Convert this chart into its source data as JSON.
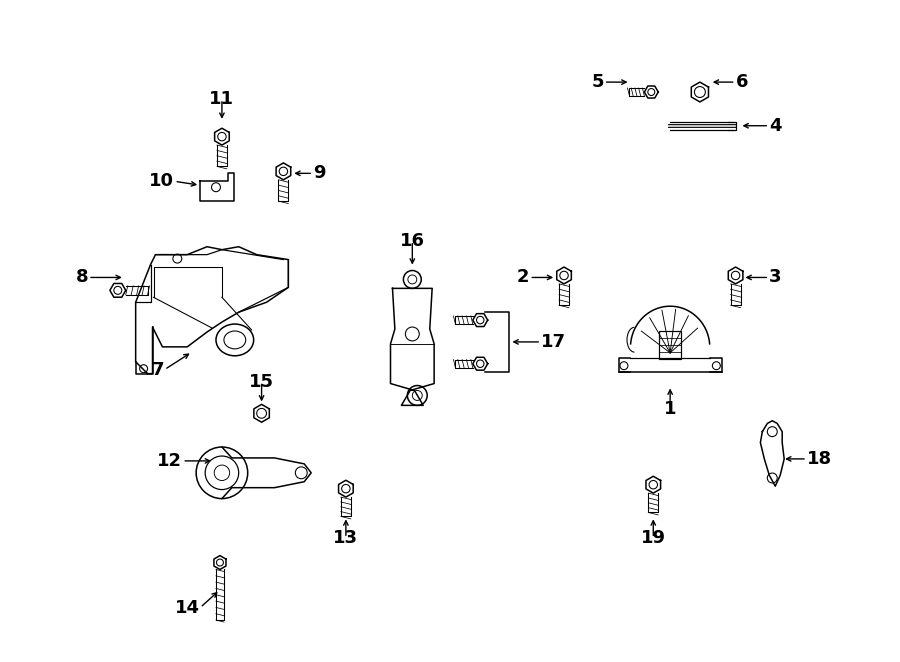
{
  "bg_color": "#ffffff",
  "line_color": "#1a1a1a",
  "fig_width": 9.0,
  "fig_height": 6.62,
  "dpi": 100,
  "font_size_labels": 13,
  "lw": 1.1
}
